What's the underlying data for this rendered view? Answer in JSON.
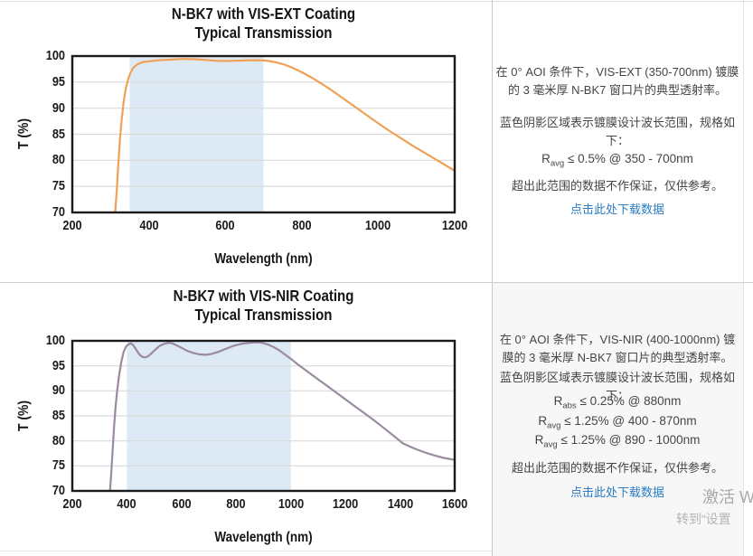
{
  "chart_data": [
    {
      "type": "line",
      "title_line1": "N-BK7 with VIS-EXT Coating",
      "title_line2": "Typical Transmission",
      "xlabel": "Wavelength (nm)",
      "ylabel": "T (%)",
      "xlim": [
        200,
        1200
      ],
      "ylim": [
        70,
        100
      ],
      "xticks": [
        200,
        400,
        600,
        800,
        1000,
        1200
      ],
      "yticks": [
        70,
        75,
        80,
        85,
        90,
        95,
        100
      ],
      "grid": "horizontal",
      "line_color": "#F0A155",
      "shade": {
        "from": 350,
        "to": 700,
        "color": "#DDE9F5"
      },
      "series": [
        {
          "name": "Transmission",
          "points": [
            [
              312,
              70
            ],
            [
              316,
              74
            ],
            [
              320,
              79
            ],
            [
              325,
              84.5
            ],
            [
              330,
              88.5
            ],
            [
              335,
              91.6
            ],
            [
              340,
              93.8
            ],
            [
              346,
              95.6
            ],
            [
              352,
              96.8
            ],
            [
              360,
              97.8
            ],
            [
              370,
              98.4
            ],
            [
              382,
              98.8
            ],
            [
              400,
              99.0
            ],
            [
              425,
              99.2
            ],
            [
              455,
              99.3
            ],
            [
              490,
              99.45
            ],
            [
              520,
              99.4
            ],
            [
              550,
              99.25
            ],
            [
              575,
              99.1
            ],
            [
              600,
              99.05
            ],
            [
              625,
              99.1
            ],
            [
              650,
              99.15
            ],
            [
              675,
              99.2
            ],
            [
              700,
              99.15
            ],
            [
              715,
              99.05
            ],
            [
              735,
              98.75
            ],
            [
              755,
              98.35
            ],
            [
              775,
              97.8
            ],
            [
              800,
              96.9
            ],
            [
              825,
              95.9
            ],
            [
              850,
              94.8
            ],
            [
              875,
              93.6
            ],
            [
              900,
              92.3
            ],
            [
              925,
              91.0
            ],
            [
              950,
              89.7
            ],
            [
              975,
              88.4
            ],
            [
              1000,
              87.1
            ],
            [
              1030,
              85.6
            ],
            [
              1060,
              84.2
            ],
            [
              1090,
              82.8
            ],
            [
              1120,
              81.5
            ],
            [
              1150,
              80.2
            ],
            [
              1175,
              79.1
            ],
            [
              1200,
              78.0
            ]
          ]
        }
      ]
    },
    {
      "type": "line",
      "title_line1": "N-BK7 with VIS-NIR Coating",
      "title_line2": "Typical Transmission",
      "xlabel": "Wavelength (nm)",
      "ylabel": "T (%)",
      "xlim": [
        200,
        1600
      ],
      "ylim": [
        70,
        100
      ],
      "xticks": [
        200,
        400,
        600,
        800,
        1000,
        1200,
        1400,
        1600
      ],
      "yticks": [
        70,
        75,
        80,
        85,
        90,
        95,
        100
      ],
      "grid": "horizontal",
      "line_color": "#9B8AA0",
      "shade": {
        "from": 400,
        "to": 1000,
        "color": "#DDE9F5"
      },
      "series": [
        {
          "name": "Transmission",
          "points": [
            [
              338,
              70
            ],
            [
              342,
              73
            ],
            [
              347,
              77.5
            ],
            [
              352,
              82
            ],
            [
              358,
              86.5
            ],
            [
              364,
              90
            ],
            [
              371,
              93
            ],
            [
              379,
              95.7
            ],
            [
              388,
              97.8
            ],
            [
              397,
              98.9
            ],
            [
              406,
              99.3
            ],
            [
              414,
              99.5
            ],
            [
              422,
              99.2
            ],
            [
              432,
              98.4
            ],
            [
              444,
              97.4
            ],
            [
              456,
              96.8
            ],
            [
              466,
              96.7
            ],
            [
              477,
              96.9
            ],
            [
              490,
              97.5
            ],
            [
              505,
              98.3
            ],
            [
              520,
              99.0
            ],
            [
              537,
              99.4
            ],
            [
              552,
              99.6
            ],
            [
              566,
              99.5
            ],
            [
              582,
              99.1
            ],
            [
              600,
              98.6
            ],
            [
              620,
              98.0
            ],
            [
              642,
              97.6
            ],
            [
              665,
              97.3
            ],
            [
              688,
              97.2
            ],
            [
              710,
              97.4
            ],
            [
              735,
              97.8
            ],
            [
              762,
              98.4
            ],
            [
              790,
              99.0
            ],
            [
              820,
              99.4
            ],
            [
              850,
              99.6
            ],
            [
              875,
              99.7
            ],
            [
              895,
              99.6
            ],
            [
              915,
              99.3
            ],
            [
              935,
              98.8
            ],
            [
              958,
              98.1
            ],
            [
              980,
              97.2
            ],
            [
              1000,
              96.4
            ],
            [
              1025,
              95.3
            ],
            [
              1050,
              94.3
            ],
            [
              1075,
              93.3
            ],
            [
              1100,
              92.3
            ],
            [
              1130,
              91.1
            ],
            [
              1160,
              89.9
            ],
            [
              1190,
              88.7
            ],
            [
              1220,
              87.5
            ],
            [
              1250,
              86.3
            ],
            [
              1280,
              85.1
            ],
            [
              1310,
              83.9
            ],
            [
              1340,
              82.6
            ],
            [
              1370,
              81.3
            ],
            [
              1395,
              80.2
            ],
            [
              1410,
              79.5
            ],
            [
              1435,
              78.9
            ],
            [
              1465,
              78.2
            ],
            [
              1495,
              77.6
            ],
            [
              1525,
              77.1
            ],
            [
              1560,
              76.6
            ],
            [
              1600,
              76.2
            ]
          ]
        }
      ]
    }
  ],
  "panels": [
    {
      "paragraph1": "在 0° AOI 条件下，VIS-EXT (350-700nm) 镀膜的 3 毫米厚 N-BK7 窗口片的典型透射率。",
      "paragraph2": "蓝色阴影区域表示镀膜设计波长范围，规格如下：",
      "specs": [
        {
          "base": "R",
          "sub": "avg",
          "rest": " ≤ 0.5% @ 350 - 700nm"
        }
      ],
      "note": "超出此范围的数据不作保证，仅供参考。",
      "link": "点击此处下载数据"
    },
    {
      "paragraph1": "在 0° AOI 条件下，VIS-NIR (400-1000nm) 镀膜的 3 毫米厚 N-BK7 窗口片的典型透射率。",
      "paragraph2": "蓝色阴影区域表示镀膜设计波长范围，规格如下：",
      "specs": [
        {
          "base": "R",
          "sub": "abs",
          "rest": " ≤ 0.25% @ 880nm"
        },
        {
          "base": "R",
          "sub": "avg",
          "rest": " ≤ 1.25% @ 400 - 870nm"
        },
        {
          "base": "R",
          "sub": "avg",
          "rest": " ≤ 1.25% @ 890 - 1000nm"
        }
      ],
      "note": "超出此范围的数据不作保证，仅供参考。",
      "link": "点击此处下载数据"
    }
  ],
  "watermark": {
    "line1": "激活 W",
    "line2": "转到“设置"
  },
  "colors": {
    "vis_ext_curve": "#F0A155",
    "vis_nir_curve": "#9B8AA0",
    "design_band": "#DDE9F5",
    "link_blue": "#2b7cc4",
    "panel_bg_gray": "#f7f7f7"
  }
}
